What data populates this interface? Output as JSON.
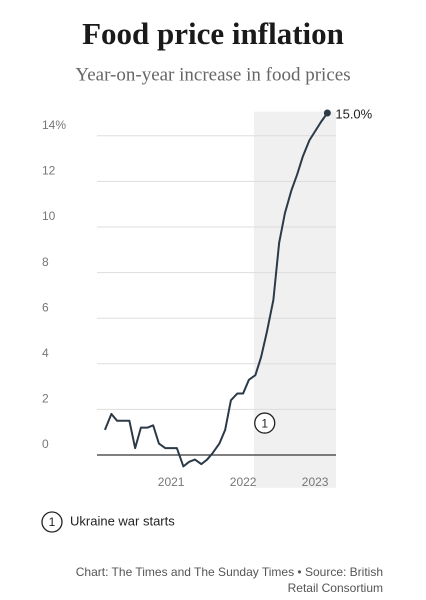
{
  "chart_data": {
    "type": "line",
    "title": "Food price inflation",
    "subtitle": "Year-on-year increase in food prices",
    "x": [
      2020.08,
      2020.17,
      2020.25,
      2020.33,
      2020.42,
      2020.5,
      2020.58,
      2020.67,
      2020.75,
      2020.83,
      2020.92,
      2021.0,
      2021.08,
      2021.17,
      2021.25,
      2021.33,
      2021.42,
      2021.5,
      2021.58,
      2021.67,
      2021.75,
      2021.83,
      2021.92,
      2022.0,
      2022.08,
      2022.17,
      2022.25,
      2022.33,
      2022.42,
      2022.5,
      2022.58,
      2022.67,
      2022.75,
      2022.83,
      2022.92,
      2023.0,
      2023.08,
      2023.17
    ],
    "series": [
      {
        "name": "Food price inflation",
        "color": "#2c3a47",
        "values": [
          1.1,
          1.8,
          1.5,
          1.5,
          1.5,
          0.3,
          1.2,
          1.2,
          1.3,
          0.5,
          0.3,
          0.3,
          0.3,
          -0.5,
          -0.3,
          -0.2,
          -0.4,
          -0.2,
          0.1,
          0.5,
          1.1,
          2.4,
          2.7,
          2.7,
          3.3,
          3.5,
          4.3,
          5.4,
          6.8,
          9.3,
          10.6,
          11.6,
          12.3,
          13.1,
          13.8,
          14.2,
          14.6,
          15.0
        ],
        "value_labels": [
          null,
          null,
          null,
          null,
          null,
          null,
          null,
          null,
          null,
          null,
          null,
          null,
          null,
          null,
          null,
          null,
          null,
          null,
          null,
          null,
          null,
          null,
          null,
          null,
          null,
          null,
          null,
          null,
          null,
          null,
          null,
          null,
          null,
          null,
          null,
          null,
          null,
          "15.0%"
        ]
      }
    ],
    "xlim": [
      2019.97,
      2023.29
    ],
    "xticks": [
      2021,
      2022,
      2023
    ],
    "ylim": [
      -1,
      15.5
    ],
    "yticks": [
      0,
      2,
      4,
      6,
      8,
      10,
      12,
      {
        "value": 14,
        "label": "14%"
      }
    ],
    "grid": true,
    "highlight_range": [
      2022.15,
      2023.29
    ],
    "annotation": {
      "label": "1",
      "x": 2022.3,
      "y": 1.4,
      "text": "Ukraine war starts"
    },
    "source": "Chart: The Times and The Sunday Times • Source: British Retail Consortium"
  }
}
